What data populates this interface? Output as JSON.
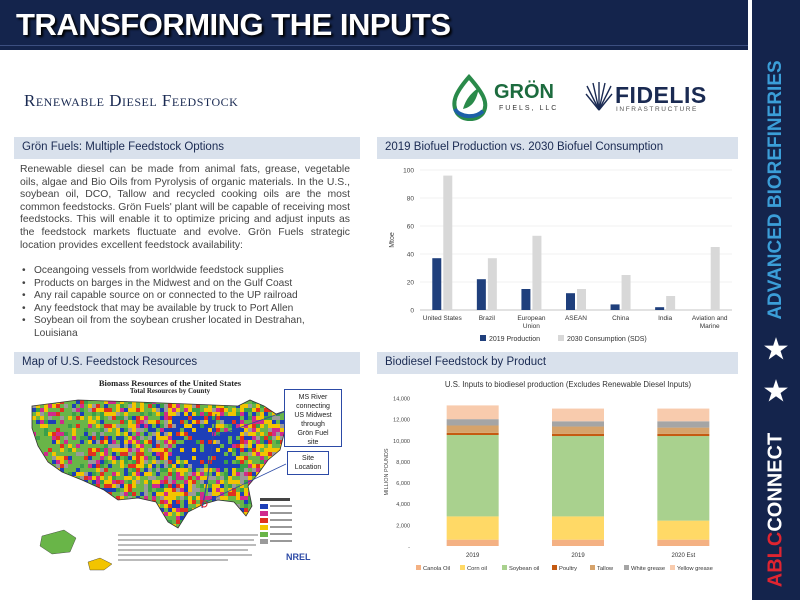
{
  "banner": {
    "title": "TRANSFORMING THE INPUTS"
  },
  "sidebar": {
    "advanced": "ADVANCED BIOREFINERIES",
    "connect_red": "ABLC",
    "connect_white": "CONNECT"
  },
  "colors": {
    "navy": "#14244c",
    "accent_blue": "#3b9ed8",
    "accent_red": "#e02430"
  },
  "section_title": "Renewable Diesel Feedstock",
  "logos": {
    "gron": {
      "name": "GRÖN",
      "sub": "FUELS, LLC"
    },
    "fidelis": {
      "name": "FIDELIS",
      "sub": "INFRASTRUCTURE"
    }
  },
  "panels": {
    "feedstock": {
      "title": "Grön Fuels: Multiple Feedstock Options",
      "paragraph": "Renewable diesel can be made from animal fats, grease, vegetable oils, algae and Bio Oils from Pyrolysis of organic materials. In the U.S., soybean oil, DCO, Tallow and recycled cooking oils are the most common feedstocks. Grön Fuels' plant will be capable of receiving most feedstocks.  This will enable it to optimize pricing and adjust inputs as the feedstock markets fluctuate and evolve. Grön Fuels strategic location provides excellent feedstock availability:",
      "bullets": [
        "Oceangoing vessels from worldwide feedstock supplies",
        "Products on barges in the Midwest and on the Gulf Coast",
        "Any rail capable source on or connected to the UP railroad",
        "Any feedstock that may be available by truck to Port Allen",
        "Soybean oil from the soybean crusher located in Destrahan, Louisiana"
      ]
    },
    "production": {
      "title": "2019 Biofuel Production vs. 2030 Biofuel Consumption"
    },
    "map": {
      "title": "Map of U.S. Feedstock Resources"
    },
    "biodiesel": {
      "title": "Biodiesel Feedstock by Product"
    }
  },
  "map": {
    "title": "Biomass Resources of the United States",
    "subtitle": "Total Resources by County",
    "callout_ms": [
      "MS River",
      "connecting",
      "US Midwest",
      "through",
      "Grön Fuel",
      "site"
    ],
    "callout_site": [
      "Site",
      "Location"
    ],
    "logo": "NREL"
  },
  "chart_data": [
    {
      "type": "bar",
      "title": "2019 Biofuel Production vs. 2030 Biofuel Consumption",
      "ylabel": "Mtoe",
      "ylim": [
        0,
        100
      ],
      "yticks": [
        0,
        20,
        40,
        60,
        80,
        100
      ],
      "categories": [
        [
          "United States"
        ],
        [
          "Brazil"
        ],
        [
          "European",
          "Union"
        ],
        [
          "ASEAN"
        ],
        [
          "China"
        ],
        [
          "India"
        ],
        [
          "Aviation and",
          "Marine"
        ]
      ],
      "series": [
        {
          "name": "2019 Production",
          "color": "#1f3f7c",
          "values": [
            37,
            22,
            15,
            12,
            4,
            2,
            0
          ]
        },
        {
          "name": "2030 Consumption (SDS)",
          "color": "#d8d8d8",
          "values": [
            96,
            37,
            53,
            15,
            25,
            10,
            45
          ]
        }
      ],
      "legend": "bottom"
    },
    {
      "type": "bar",
      "stacked": true,
      "title": "U.S. Inputs to biodiesel production (Excludes Renewable Diesel Inputs)",
      "ylabel": "MILLION POUNDS",
      "ylim": [
        0,
        14000
      ],
      "yticks": [
        0,
        2000,
        4000,
        6000,
        8000,
        10000,
        12000,
        14000
      ],
      "ytick_labels": [
        "-",
        "2,000",
        "4,000",
        "6,000",
        "8,000",
        "10,000",
        "12,000",
        "14,000"
      ],
      "categories": [
        "2019",
        "2019",
        "2020 Est"
      ],
      "series": [
        {
          "name": "Canola Oil",
          "color": "#f4b183",
          "values": [
            600,
            600,
            600
          ]
        },
        {
          "name": "Corn oil",
          "color": "#ffd966",
          "values": [
            2200,
            2200,
            1800
          ]
        },
        {
          "name": "Soybean oil",
          "color": "#a9d18e",
          "values": [
            7700,
            7600,
            8000
          ]
        },
        {
          "name": "Poultry",
          "color": "#c55a11",
          "values": [
            200,
            200,
            200
          ]
        },
        {
          "name": "Tallow",
          "color": "#d6a36b",
          "values": [
            700,
            700,
            600
          ]
        },
        {
          "name": "White grease",
          "color": "#a5a5a5",
          "values": [
            600,
            500,
            600
          ]
        },
        {
          "name": "Yellow grease",
          "color": "#f8cbad",
          "values": [
            1300,
            1200,
            1200
          ]
        }
      ],
      "legend": "bottom"
    }
  ]
}
